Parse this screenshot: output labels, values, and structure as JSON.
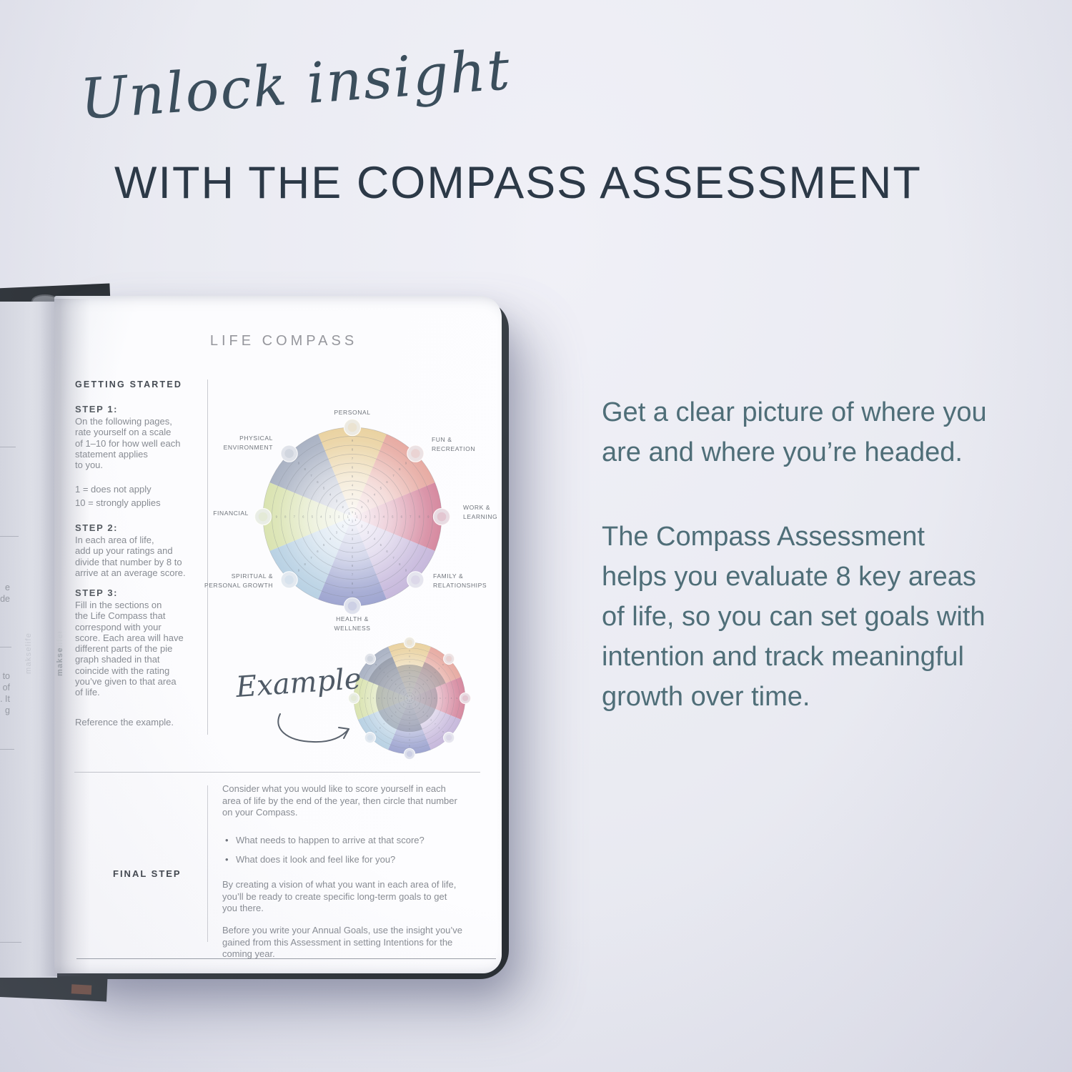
{
  "header": {
    "script": "Unlock insight",
    "caps": "WITH THE COMPASS ASSESSMENT"
  },
  "marketing": {
    "p1": "Get a clear picture of where you\nare and where you’re headed.",
    "p2": "The Compass Assessment\nhelps you evaluate 8 key areas\nof life, so you can set goals with\nintention and track meaningful\ngrowth over time.",
    "text_color": "#4f6e78",
    "headline_color": "#2c3947"
  },
  "page": {
    "title": "LIFE COMPASS",
    "getting_started": "GETTING STARTED",
    "steps": [
      {
        "heading": "STEP 1:",
        "body": "On the following pages,\nrate yourself on a scale\nof 1–10 for how well each\nstatement applies\nto you."
      },
      {
        "heading": "STEP 2:",
        "body": "In each area of life,\nadd up your ratings and\ndivide that number by 8 to\narrive at an average score."
      },
      {
        "heading": "STEP 3:",
        "body": "Fill in the sections on\nthe Life Compass that\ncorrespond with your\nscore. Each area will have\ndifferent parts of the pie\ngraph shaded in that\ncoincide with the rating\nyou’ve given to that area\nof life."
      }
    ],
    "scale_note": "1 = does not apply\n10 = strongly applies",
    "reference_note": "Reference the example.",
    "example_label": "Example",
    "final_step_label": "FINAL STEP",
    "final_step": {
      "intro": "Consider what you would like to score yourself in each\narea of life by the end of the year, then circle that number\non your Compass.",
      "bullets": [
        "What needs to happen to arrive at that score?",
        "What does it look and feel like for you?"
      ],
      "p2": "By creating a vision of what you want in each area of life,\nyou’ll be ready to create specific long-term goals to get\nyou there.",
      "p3": "Before you write your Annual Goals, use the insight you’ve\ngained from this Assessment in setting Intentions for the\ncoming year."
    },
    "brand_part1": "makse",
    "brand_part2": "life",
    "brand_tm": "™"
  },
  "left_page_fragments": {
    "group1": "e\nde",
    "group2": "to\nof\n. It\ng"
  },
  "chart_data": {
    "type": "pie",
    "title": "LIFE COMPASS",
    "categories": [
      "PERSONAL",
      "FUN & RECREATION",
      "WORK & LEARNING",
      "FAMILY & RELATIONSHIPS",
      "HEALTH & WELLNESS",
      "SPIRITUAL & PERSONAL GROWTH",
      "FINANCIAL",
      "PHYSICAL ENVIRONMENT"
    ],
    "colors": [
      "#e9d09c",
      "#e6a79e",
      "#d4849b",
      "#c4b5da",
      "#9aa1ce",
      "#b5cfe2",
      "#d8e2ad",
      "#a5aec0"
    ],
    "scale_min": 1,
    "scale_max": 10,
    "rings": 10,
    "example_scores": [
      6,
      7,
      5,
      5,
      6,
      6,
      6,
      8
    ],
    "layout": "8 equal 45° wedges, rating rings 1–10 radiating outward, node circle at rim of each wedge center"
  }
}
